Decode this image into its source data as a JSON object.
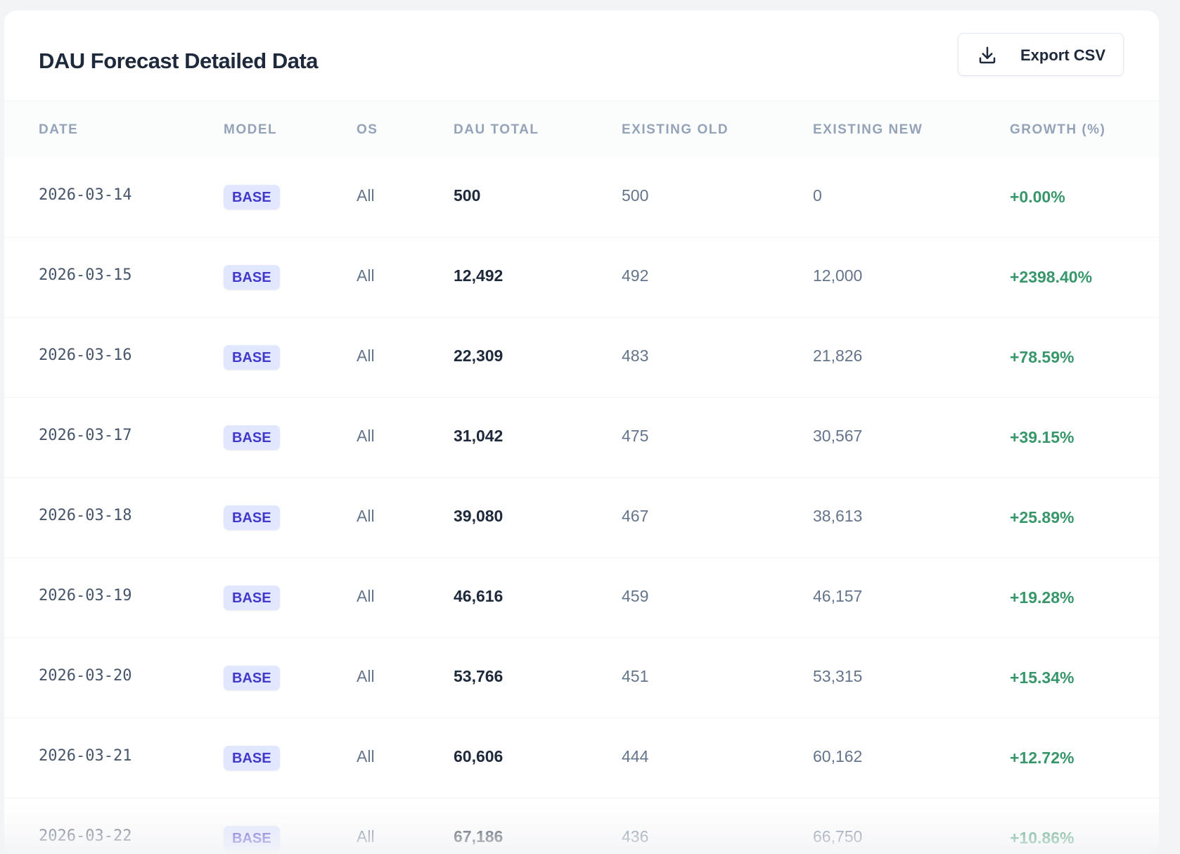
{
  "header": {
    "title": "DAU Forecast Detailed Data",
    "button": "Export CSV"
  },
  "table": {
    "columns": [
      "DATE",
      "MODEL",
      "OS",
      "DAU TOTAL",
      "EXISTING OLD",
      "EXISTING NEW",
      "GROWTH (%)"
    ],
    "rows": [
      [
        "2026-03-14",
        "BASE",
        "All",
        "500",
        "500",
        "0",
        "+0.00%"
      ],
      [
        "2026-03-15",
        "BASE",
        "All",
        "12,492",
        "492",
        "12,000",
        "+2398.40%"
      ],
      [
        "2026-03-16",
        "BASE",
        "All",
        "22,309",
        "483",
        "21,826",
        "+78.59%"
      ],
      [
        "2026-03-17",
        "BASE",
        "All",
        "31,042",
        "475",
        "30,567",
        "+39.15%"
      ],
      [
        "2026-03-18",
        "BASE",
        "All",
        "39,080",
        "467",
        "38,613",
        "+25.89%"
      ],
      [
        "2026-03-19",
        "BASE",
        "All",
        "46,616",
        "459",
        "46,157",
        "+19.28%"
      ],
      [
        "2026-03-20",
        "BASE",
        "All",
        "53,766",
        "451",
        "53,315",
        "+15.34%"
      ],
      [
        "2026-03-21",
        "BASE",
        "All",
        "60,606",
        "444",
        "60,162",
        "+12.72%"
      ],
      [
        "2026-03-22",
        "BASE",
        "All",
        "67,186",
        "436",
        "66,750",
        "+10.86%"
      ]
    ]
  }
}
